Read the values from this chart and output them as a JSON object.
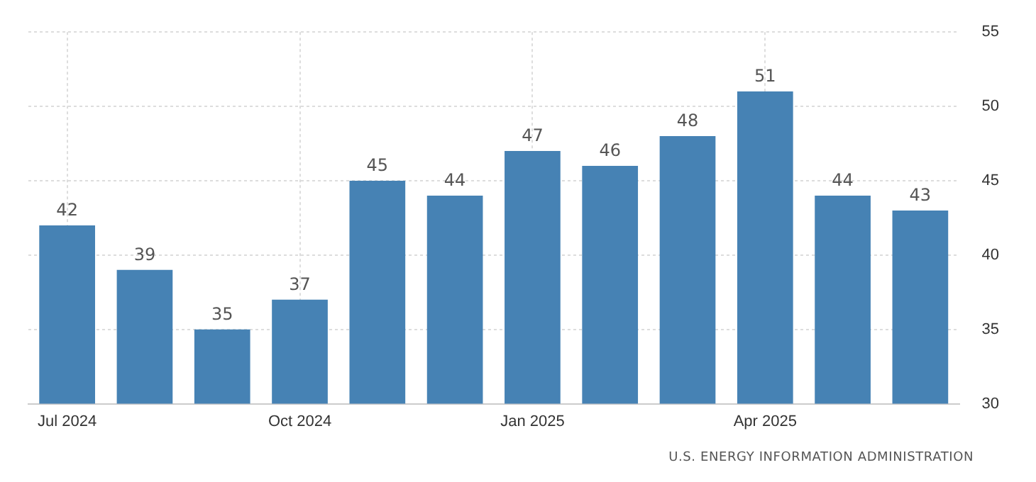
{
  "chart_data": {
    "type": "bar",
    "categories": [
      "Jul 2024",
      null,
      null,
      "Oct 2024",
      null,
      null,
      "Jan 2025",
      null,
      null,
      "Apr 2025",
      null,
      null
    ],
    "values": [
      42,
      39,
      35,
      37,
      45,
      44,
      47,
      46,
      48,
      51,
      44,
      43
    ],
    "color": "#4682b4",
    "ylim": [
      30,
      55
    ],
    "yticks": [
      30,
      35,
      40,
      45,
      50,
      55
    ],
    "grid": true,
    "data_labels": true,
    "annotations": [
      "U.S. ENERGY INFORMATION ADMINISTRATION"
    ]
  }
}
